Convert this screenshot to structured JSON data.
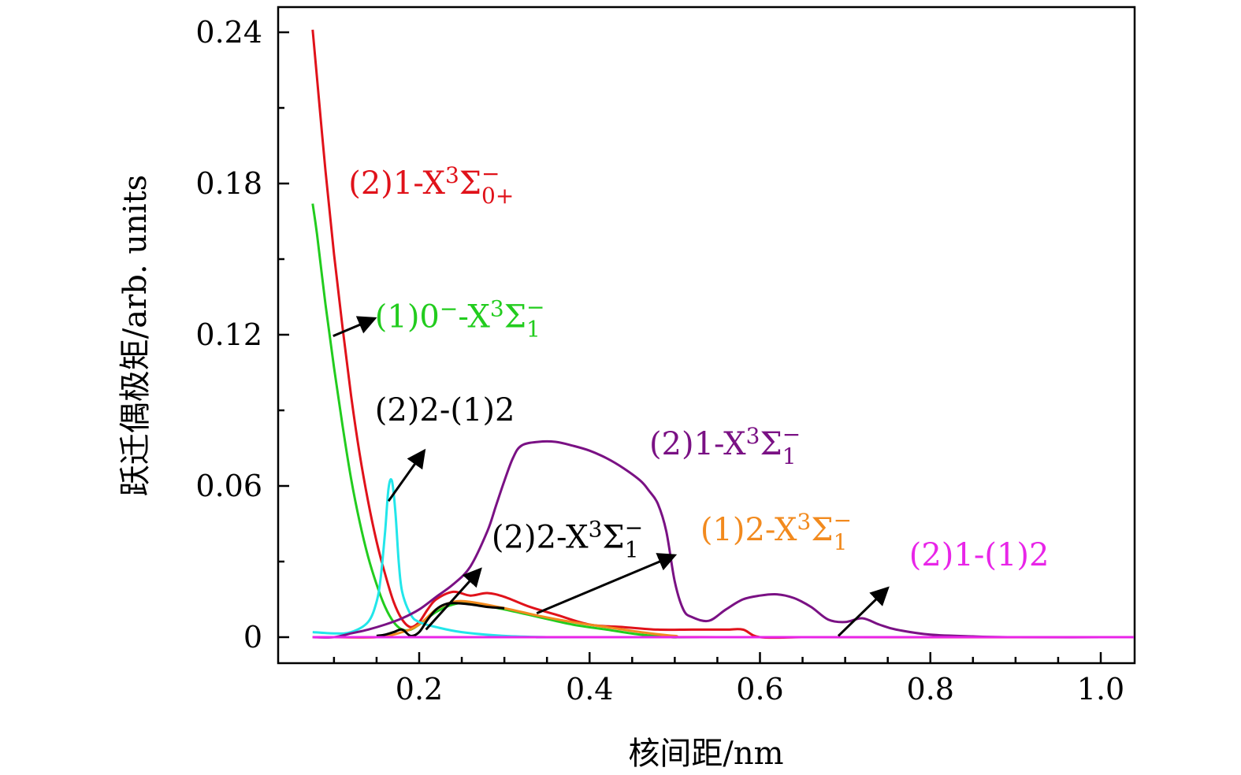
{
  "chart_data": {
    "type": "line",
    "title": "",
    "xlabel": "核间距/nm",
    "ylabel": "跃迁偶极矩/arb. units",
    "xlim": [
      0.05,
      1.05
    ],
    "ylim": [
      -0.01,
      0.25
    ],
    "xticks": [
      0.2,
      0.4,
      0.6,
      0.8,
      1.0
    ],
    "xtick_labels": [
      "0.2",
      "0.4",
      "0.6",
      "0.8",
      "1.0"
    ],
    "yticks": [
      0,
      0.06,
      0.12,
      0.18,
      0.24
    ],
    "ytick_labels": [
      "0",
      "0.06",
      "0.12",
      "0.18",
      "0.24"
    ],
    "grid": false,
    "series": [
      {
        "key": "red",
        "color": "#e0121a",
        "x": [
          0.075,
          0.08,
          0.09,
          0.1,
          0.11,
          0.12,
          0.13,
          0.14,
          0.15,
          0.16,
          0.17,
          0.18,
          0.19,
          0.2,
          0.21,
          0.22,
          0.24,
          0.26,
          0.28,
          0.3,
          0.33,
          0.36,
          0.4,
          0.44,
          0.48,
          0.52,
          0.56,
          0.58,
          0.6,
          0.65,
          0.7,
          1.05
        ],
        "y": [
          0.241,
          0.222,
          0.185,
          0.152,
          0.123,
          0.096,
          0.073,
          0.054,
          0.038,
          0.025,
          0.014,
          0.007,
          0.004,
          0.006,
          0.011,
          0.015,
          0.018,
          0.0165,
          0.0175,
          0.016,
          0.012,
          0.009,
          0.005,
          0.004,
          0.003,
          0.003,
          0.003,
          0.003,
          0.0,
          0.0,
          0.0,
          0.0
        ]
      },
      {
        "key": "green",
        "color": "#22cc1e",
        "x": [
          0.075,
          0.08,
          0.09,
          0.1,
          0.11,
          0.12,
          0.13,
          0.14,
          0.15,
          0.16,
          0.17,
          0.18,
          0.19,
          0.2,
          0.22,
          0.24,
          0.26,
          0.3,
          0.34,
          0.38,
          0.42,
          0.46,
          0.5,
          0.55,
          1.05
        ],
        "y": [
          0.172,
          0.16,
          0.132,
          0.107,
          0.084,
          0.063,
          0.046,
          0.032,
          0.021,
          0.012,
          0.006,
          0.003,
          0.003,
          0.005,
          0.01,
          0.013,
          0.0135,
          0.011,
          0.008,
          0.005,
          0.003,
          0.001,
          0.0,
          0.0,
          0.0
        ]
      },
      {
        "key": "orange",
        "color": "#f28a1e",
        "x": [
          0.075,
          0.1,
          0.15,
          0.18,
          0.2,
          0.22,
          0.24,
          0.26,
          0.3,
          0.34,
          0.38,
          0.42,
          0.46,
          0.5,
          0.55,
          1.05
        ],
        "y": [
          0.0,
          0.0,
          0.0,
          0.002,
          0.005,
          0.011,
          0.014,
          0.014,
          0.0115,
          0.0085,
          0.006,
          0.004,
          0.002,
          0.0005,
          0.0,
          0.0
        ]
      },
      {
        "key": "cyan",
        "color": "#22e6ea",
        "x": [
          0.075,
          0.1,
          0.12,
          0.14,
          0.15,
          0.155,
          0.16,
          0.164,
          0.168,
          0.172,
          0.176,
          0.18,
          0.19,
          0.2,
          0.22,
          0.25,
          0.3,
          0.35,
          0.4,
          1.05
        ],
        "y": [
          0.002,
          0.0015,
          0.002,
          0.006,
          0.014,
          0.024,
          0.042,
          0.059,
          0.062,
          0.05,
          0.03,
          0.018,
          0.009,
          0.006,
          0.004,
          0.002,
          0.0005,
          0.0,
          0.0,
          0.0
        ]
      },
      {
        "key": "black",
        "color": "#000000",
        "x": [
          0.15,
          0.16,
          0.17,
          0.18,
          0.19,
          0.2,
          0.21,
          0.22,
          0.23,
          0.24,
          0.26,
          0.28,
          0.3
        ],
        "y": [
          0.0005,
          0.001,
          0.002,
          0.003,
          0.0005,
          0.002,
          0.007,
          0.011,
          0.013,
          0.0135,
          0.013,
          0.012,
          0.0115
        ]
      },
      {
        "key": "purple",
        "color": "#7a1184",
        "x": [
          0.075,
          0.1,
          0.12,
          0.14,
          0.16,
          0.18,
          0.2,
          0.22,
          0.24,
          0.26,
          0.28,
          0.29,
          0.3,
          0.31,
          0.32,
          0.34,
          0.36,
          0.38,
          0.4,
          0.42,
          0.44,
          0.46,
          0.47,
          0.48,
          0.49,
          0.5,
          0.51,
          0.52,
          0.54,
          0.56,
          0.58,
          0.6,
          0.62,
          0.64,
          0.66,
          0.68,
          0.7,
          0.72,
          0.74,
          0.76,
          0.8,
          0.85,
          0.9,
          1.05
        ],
        "y": [
          0.0,
          0.0,
          0.0015,
          0.003,
          0.005,
          0.0075,
          0.011,
          0.016,
          0.021,
          0.028,
          0.042,
          0.052,
          0.062,
          0.071,
          0.076,
          0.0775,
          0.0775,
          0.076,
          0.074,
          0.071,
          0.067,
          0.062,
          0.058,
          0.053,
          0.042,
          0.022,
          0.011,
          0.008,
          0.0065,
          0.011,
          0.015,
          0.0165,
          0.017,
          0.0155,
          0.012,
          0.007,
          0.006,
          0.0075,
          0.005,
          0.003,
          0.001,
          0.0003,
          0.0,
          0.0
        ]
      },
      {
        "key": "magenta",
        "color": "#e825e8",
        "x": [
          0.075,
          1.05
        ],
        "y": [
          0.0,
          0.0
        ]
      }
    ],
    "annotations": [
      {
        "key": "red",
        "color": "#e0121a",
        "prefix": "(2)1-X",
        "sup": "3",
        "sigma": "Σ",
        "sigma_sup": "−",
        "sigma_sub": "0+",
        "x": 0.117,
        "y": 0.176
      },
      {
        "key": "green",
        "color": "#22cc1e",
        "prefix": "(1)0",
        "pre_sup": "−",
        "mid": "-X",
        "sup": "3",
        "sigma": "Σ",
        "sigma_sup": "−",
        "sigma_sub": "1",
        "x": 0.148,
        "y": 0.123
      },
      {
        "key": "black1",
        "color": "#000000",
        "prefix": "(2)2-(1)2",
        "x": 0.148,
        "y": 0.086
      },
      {
        "key": "purple",
        "color": "#7a1184",
        "prefix": "(2)1-X",
        "sup": "3",
        "sigma": "Σ",
        "sigma_sup": "−",
        "sigma_sub": "1",
        "x": 0.47,
        "y": 0.0725
      },
      {
        "key": "black2",
        "color": "#000000",
        "prefix": "(2)2-X",
        "sup": "3",
        "sigma": "Σ",
        "sigma_sup": "−",
        "sigma_sub": "1",
        "x": 0.285,
        "y": 0.0355
      },
      {
        "key": "orange",
        "color": "#f28a1e",
        "prefix": "(1)2-X",
        "sup": "3",
        "sigma": "Σ",
        "sigma_sup": "−",
        "sigma_sub": "1",
        "x": 0.53,
        "y": 0.0385
      },
      {
        "key": "magenta",
        "color": "#e825e8",
        "prefix": "(2)1-(1)2",
        "x": 0.775,
        "y": 0.0285
      }
    ],
    "arrows": [
      {
        "key": "green-arrow",
        "from": [
          0.099,
          0.1195
        ],
        "to": [
          0.148,
          0.1265
        ]
      },
      {
        "key": "cyan-arrow",
        "from": [
          0.164,
          0.054
        ],
        "to": [
          0.206,
          0.074
        ]
      },
      {
        "key": "black-arrow",
        "from": [
          0.208,
          0.003
        ],
        "to": [
          0.272,
          0.027
        ]
      },
      {
        "key": "orange-arrow",
        "from": [
          0.338,
          0.0095
        ],
        "to": [
          0.5,
          0.0325
        ]
      },
      {
        "key": "magenta-arrow",
        "from": [
          0.692,
          0.0005
        ],
        "to": [
          0.75,
          0.0195
        ]
      }
    ]
  }
}
